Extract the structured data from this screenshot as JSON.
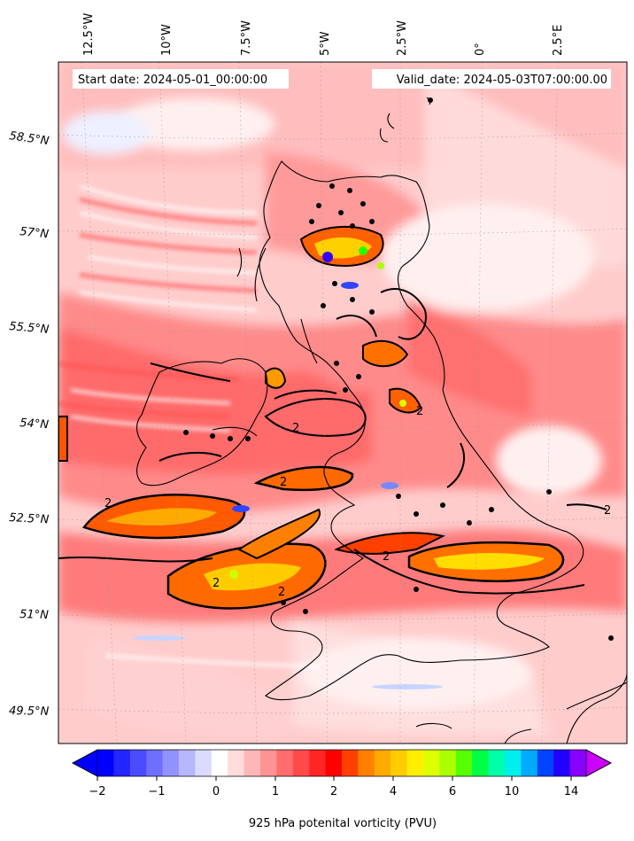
{
  "header": {
    "start_date": "Start date: 2024-05-01_00:00:00",
    "valid_date": "Valid_date: 2024-05-03T07:00:00.00"
  },
  "map": {
    "lon_labels": [
      "12.5°W",
      "10°W",
      "7.5°W",
      "5°W",
      "2.5°W",
      "0°",
      "2.5°E"
    ],
    "lat_labels": [
      "58.5°N",
      "57°N",
      "55.5°N",
      "54°N",
      "52.5°N",
      "51°N",
      "49.5°N"
    ],
    "contour_label": "2"
  },
  "colorbar": {
    "label": "925 hPa potenital vorticity (PVU)",
    "ticks": [
      "−2",
      "−1",
      "0",
      "1",
      "2",
      "4",
      "6",
      "10",
      "14"
    ],
    "colors": [
      "#0000ff",
      "#2525ff",
      "#4a4aff",
      "#6e6eff",
      "#9292ff",
      "#b6b6ff",
      "#dbdbff",
      "#ffffff",
      "#ffdbdb",
      "#ffb6b6",
      "#ff9292",
      "#ff6e6e",
      "#ff4a4a",
      "#ff2525",
      "#ff0000",
      "#ff4000",
      "#ff8000",
      "#ffaa00",
      "#ffcc00",
      "#ffee00",
      "#ddff00",
      "#aaff00",
      "#55ff00",
      "#00ff44",
      "#00ffaa",
      "#00eeee",
      "#00aaff",
      "#0044ff",
      "#2200ff",
      "#8800ff"
    ],
    "under_color": "#0000ff",
    "over_color": "#cc00ff"
  }
}
